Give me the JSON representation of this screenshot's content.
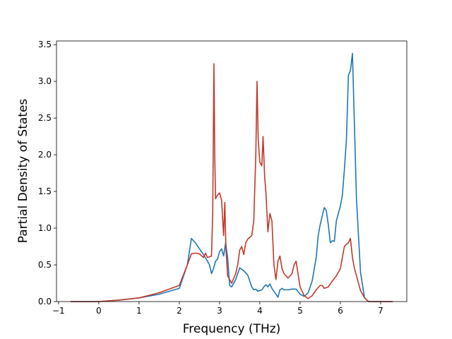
{
  "chart_data": {
    "type": "line",
    "title": "",
    "xlabel": "Frequency (THz)",
    "ylabel": "Partial Density of States",
    "xlim": [
      -1.05,
      7.65
    ],
    "ylim": [
      0.0,
      3.55
    ],
    "xticks": [
      -1,
      0,
      1,
      2,
      3,
      4,
      5,
      6,
      7
    ],
    "xtick_labels": [
      "−1",
      "0",
      "1",
      "2",
      "3",
      "4",
      "5",
      "6",
      "7"
    ],
    "yticks": [
      0.0,
      0.5,
      1.0,
      1.5,
      2.0,
      2.5,
      3.0,
      3.5
    ],
    "ytick_labels": [
      "0.0",
      "0.5",
      "1.0",
      "1.5",
      "2.0",
      "2.5",
      "3.0",
      "3.5"
    ],
    "grid": false,
    "legend": "none",
    "series": [
      {
        "color": "#1f77b4",
        "x": [
          -0.7,
          0.0,
          0.5,
          1.0,
          1.5,
          2.0,
          2.2,
          2.3,
          2.4,
          2.5,
          2.6,
          2.7,
          2.75,
          2.8,
          2.85,
          2.9,
          2.95,
          3.0,
          3.05,
          3.1,
          3.15,
          3.2,
          3.25,
          3.3,
          3.4,
          3.5,
          3.6,
          3.7,
          3.8,
          3.85,
          3.9,
          3.95,
          4.0,
          4.05,
          4.1,
          4.15,
          4.2,
          4.25,
          4.3,
          4.35,
          4.4,
          4.45,
          4.5,
          4.55,
          4.6,
          4.7,
          4.8,
          4.9,
          5.0,
          5.1,
          5.2,
          5.3,
          5.4,
          5.45,
          5.5,
          5.6,
          5.65,
          5.7,
          5.75,
          5.8,
          5.85,
          5.9,
          6.0,
          6.05,
          6.1,
          6.15,
          6.2,
          6.25,
          6.3,
          6.4,
          6.5,
          6.6,
          6.7,
          7.0,
          7.3
        ],
        "y": [
          0.0,
          0.0,
          0.02,
          0.05,
          0.1,
          0.18,
          0.5,
          0.86,
          0.8,
          0.72,
          0.64,
          0.55,
          0.5,
          0.38,
          0.45,
          0.55,
          0.58,
          0.68,
          0.72,
          0.62,
          0.8,
          0.6,
          0.22,
          0.2,
          0.3,
          0.46,
          0.42,
          0.36,
          0.2,
          0.16,
          0.17,
          0.14,
          0.15,
          0.16,
          0.2,
          0.23,
          0.2,
          0.24,
          0.18,
          0.14,
          0.1,
          0.06,
          0.16,
          0.18,
          0.16,
          0.16,
          0.17,
          0.17,
          0.1,
          0.07,
          0.12,
          0.28,
          0.6,
          0.9,
          1.05,
          1.28,
          1.24,
          1.05,
          0.8,
          0.83,
          0.82,
          1.1,
          1.3,
          1.45,
          1.8,
          2.2,
          3.08,
          3.15,
          3.38,
          1.4,
          0.4,
          0.05,
          0.0,
          0.0,
          0.0
        ]
      },
      {
        "color": "#c0392b",
        "x": [
          -0.7,
          0.0,
          0.5,
          1.0,
          1.5,
          2.0,
          2.2,
          2.3,
          2.4,
          2.5,
          2.6,
          2.65,
          2.7,
          2.8,
          2.83,
          2.86,
          2.88,
          2.9,
          2.95,
          3.0,
          3.05,
          3.1,
          3.13,
          3.16,
          3.2,
          3.3,
          3.4,
          3.45,
          3.5,
          3.55,
          3.6,
          3.65,
          3.7,
          3.8,
          3.85,
          3.9,
          3.93,
          3.96,
          4.0,
          4.05,
          4.08,
          4.12,
          4.15,
          4.2,
          4.25,
          4.3,
          4.35,
          4.4,
          4.45,
          4.5,
          4.55,
          4.6,
          4.7,
          4.8,
          4.85,
          4.9,
          5.0,
          5.1,
          5.2,
          5.3,
          5.4,
          5.5,
          5.55,
          5.6,
          5.7,
          5.8,
          5.9,
          6.0,
          6.1,
          6.15,
          6.2,
          6.25,
          6.3,
          6.35,
          6.4,
          6.5,
          6.6,
          6.7,
          7.0,
          7.3
        ],
        "y": [
          0.0,
          0.0,
          0.02,
          0.05,
          0.12,
          0.22,
          0.5,
          0.65,
          0.66,
          0.65,
          0.6,
          0.66,
          0.6,
          0.62,
          1.2,
          3.24,
          2.0,
          1.4,
          1.45,
          1.48,
          1.38,
          0.9,
          1.35,
          0.7,
          0.35,
          0.25,
          0.38,
          0.5,
          0.7,
          0.75,
          0.64,
          0.8,
          0.85,
          0.9,
          1.1,
          2.0,
          3.0,
          2.2,
          1.9,
          1.85,
          2.25,
          1.7,
          1.5,
          0.95,
          1.2,
          1.1,
          0.5,
          0.3,
          0.55,
          0.62,
          0.45,
          0.38,
          0.32,
          0.38,
          0.5,
          0.55,
          0.2,
          0.08,
          0.04,
          0.08,
          0.16,
          0.22,
          0.22,
          0.18,
          0.2,
          0.28,
          0.35,
          0.45,
          0.75,
          0.78,
          0.8,
          0.86,
          0.6,
          0.45,
          0.35,
          0.15,
          0.05,
          0.0,
          0.0,
          0.0
        ]
      }
    ]
  }
}
